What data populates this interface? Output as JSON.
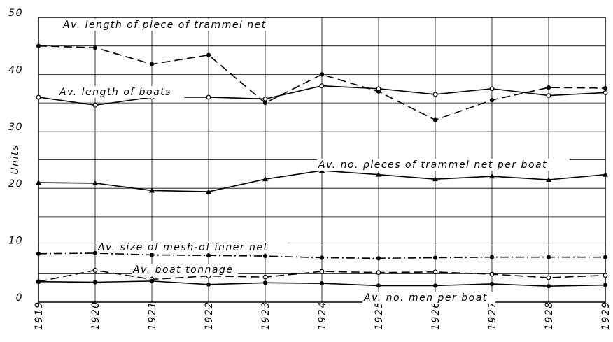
{
  "chart_data": {
    "type": "line",
    "y_label": "Units",
    "x": [
      1919,
      1920,
      1921,
      1922,
      1923,
      1924,
      1925,
      1926,
      1927,
      1928,
      1929
    ],
    "xlim": [
      1919,
      1929
    ],
    "xticks": [
      1919,
      1920,
      1921,
      1922,
      1923,
      1924,
      1925,
      1926,
      1927,
      1928,
      1929
    ],
    "ylim": [
      0,
      50
    ],
    "yticks": [
      0,
      10,
      20,
      30,
      40,
      50
    ],
    "minor_yticks": [
      5,
      15,
      25,
      35,
      45
    ],
    "grid": true,
    "series": [
      {
        "name": "Av. length of piece of trammel net",
        "color": "#000",
        "dash": "dashed",
        "marker": "dot",
        "values": [
          45,
          44.7,
          41.8,
          43.4,
          35,
          40,
          37,
          32,
          35.5,
          37.7,
          37.6
        ]
      },
      {
        "name": "Av. length of boats",
        "color": "#000",
        "dash": "solid",
        "marker": "open-circle",
        "values": [
          36,
          34.6,
          36,
          36,
          35.7,
          38,
          37.5,
          36.5,
          37.5,
          36.3,
          36.8
        ]
      },
      {
        "name": "Av. no. pieces of trammel net per boat",
        "color": "#000",
        "dash": "solid",
        "marker": "triangle",
        "values": [
          21,
          20.9,
          19.6,
          19.4,
          21.6,
          23.1,
          22.4,
          21.6,
          22.1,
          21.5,
          22.4
        ]
      },
      {
        "name": "Av. size of mesh-of inner net",
        "color": "#000",
        "dash": "dashdot",
        "marker": "dot",
        "values": [
          8.5,
          8.6,
          8.3,
          8.2,
          8.1,
          7.8,
          7.7,
          7.8,
          7.9,
          7.9,
          7.9
        ]
      },
      {
        "name": "Av. boat tonnage",
        "color": "#000",
        "dash": "dashed",
        "marker": "open-circle",
        "values": [
          3.6,
          5.6,
          4,
          4.6,
          4.4,
          5.4,
          5.2,
          5.3,
          4.9,
          4.3,
          4.7
        ]
      },
      {
        "name": "Av. no. men per boat",
        "color": "#000",
        "dash": "solid",
        "marker": "dot",
        "values": [
          3.6,
          3.5,
          3.7,
          3.1,
          3.4,
          3.3,
          2.9,
          2.9,
          3.2,
          2.8,
          3.0
        ]
      }
    ]
  }
}
